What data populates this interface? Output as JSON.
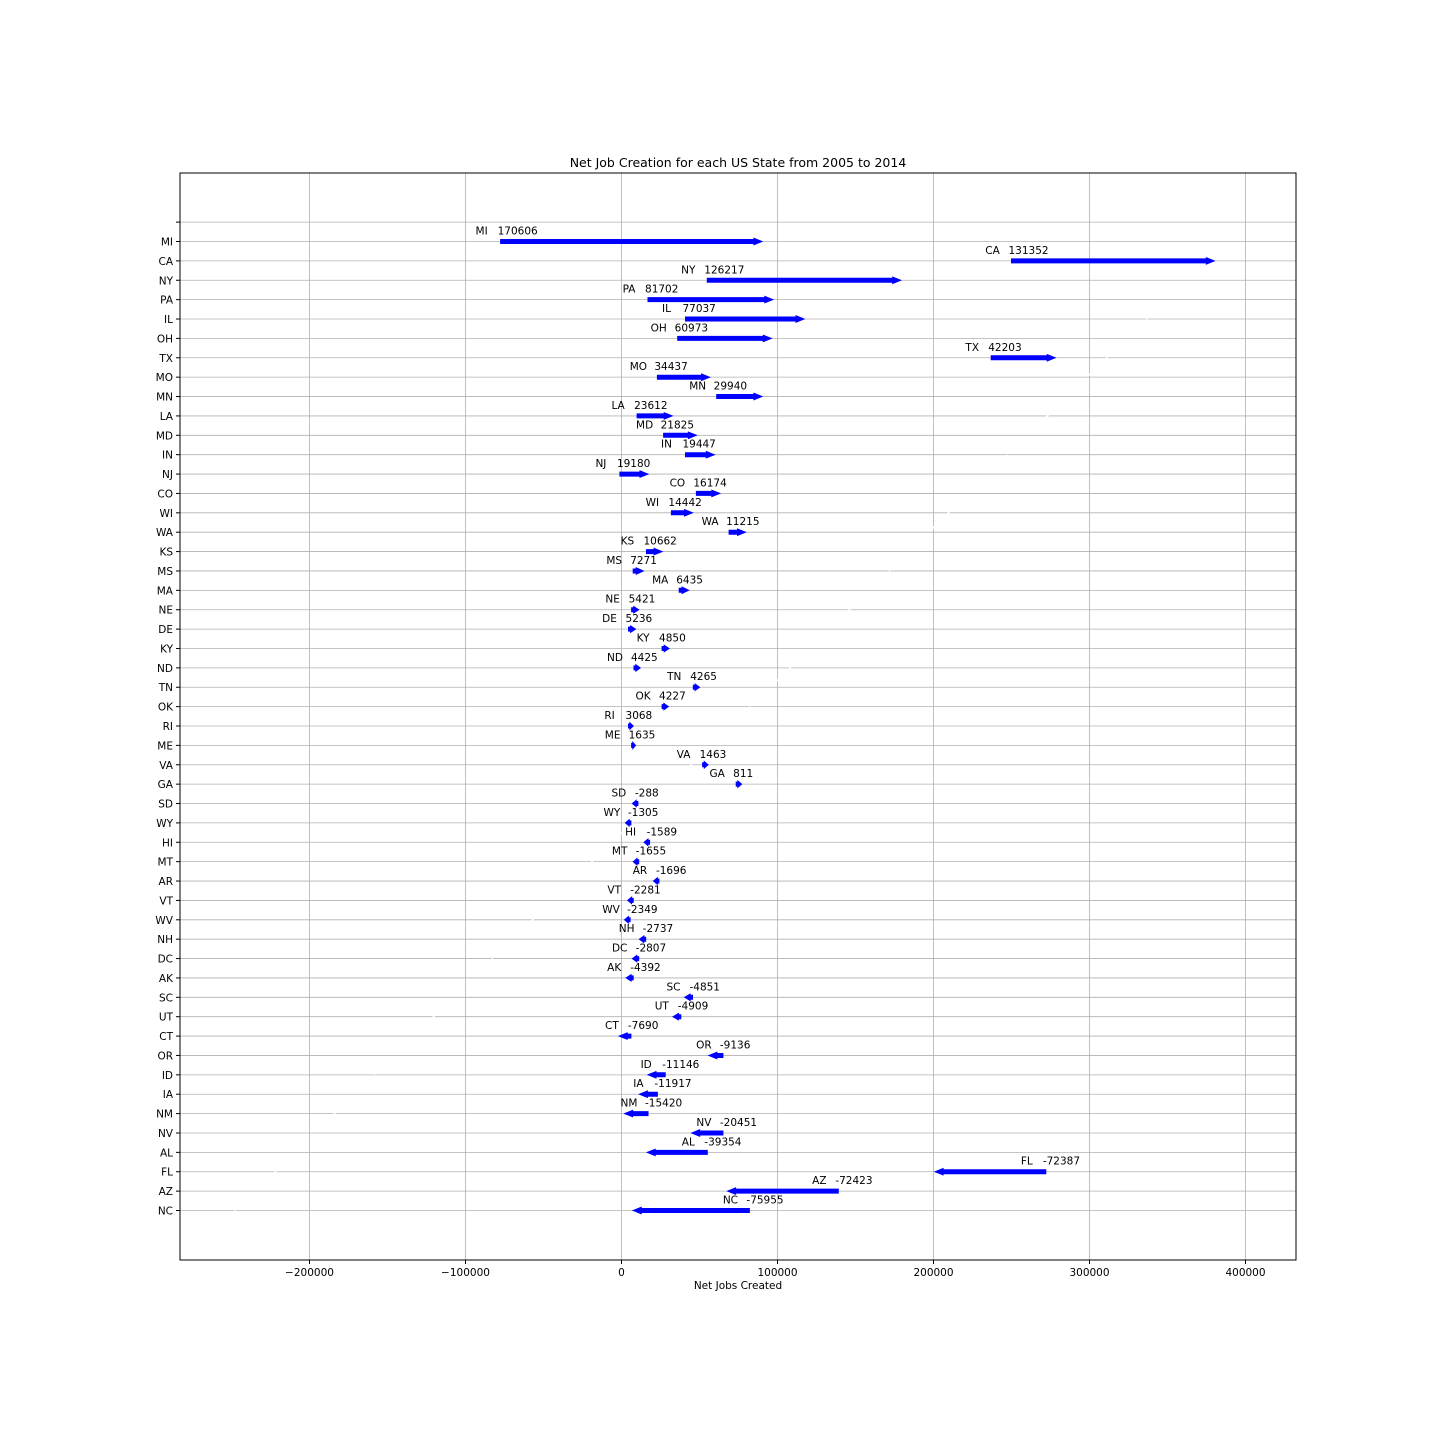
{
  "chart_data": {
    "type": "arrow",
    "title": "Net Job Creation for each US State from 2005 to 2014",
    "xlabel": "Net Jobs Created",
    "ylabel": "",
    "xlim": [
      -280000,
      435000
    ],
    "xticks": [
      -200000,
      -100000,
      0,
      100000,
      200000,
      300000,
      400000
    ],
    "xtick_labels": [
      "−200000",
      "−100000",
      "0",
      "100000",
      "200000",
      "300000",
      "400000"
    ],
    "grid": true,
    "arrow_color": "#0000ff",
    "states": [
      {
        "state": "MI",
        "value": 170606,
        "start": -77500,
        "end": 90000
      },
      {
        "state": "CA",
        "value": 131352,
        "start": 250000,
        "end": 380000
      },
      {
        "state": "NY",
        "value": 126217,
        "start": 55000,
        "end": 179000
      },
      {
        "state": "PA",
        "value": 81702,
        "start": 17000,
        "end": 97000
      },
      {
        "state": "IL",
        "value": 77037,
        "start": 41000,
        "end": 117000
      },
      {
        "state": "OH",
        "value": 60973,
        "start": 36000,
        "end": 96000
      },
      {
        "state": "TX",
        "value": 42203,
        "start": 237000,
        "end": 278000
      },
      {
        "state": "MO",
        "value": 34437,
        "start": 23000,
        "end": 56500
      },
      {
        "state": "MN",
        "value": 29940,
        "start": 61000,
        "end": 90000
      },
      {
        "state": "LA",
        "value": 23612,
        "start": 10000,
        "end": 32500
      },
      {
        "state": "MD",
        "value": 21825,
        "start": 27000,
        "end": 48000
      },
      {
        "state": "IN",
        "value": 19447,
        "start": 41000,
        "end": 59500
      },
      {
        "state": "NJ",
        "value": 19180,
        "start": -1000,
        "end": 17000
      },
      {
        "state": "CO",
        "value": 16174,
        "start": 48000,
        "end": 63000
      },
      {
        "state": "WI",
        "value": 14442,
        "start": 32000,
        "end": 45500
      },
      {
        "state": "WA",
        "value": 11215,
        "start": 69000,
        "end": 79500
      },
      {
        "state": "KS",
        "value": 10662,
        "start": 16000,
        "end": 26000
      },
      {
        "state": "MS",
        "value": 7271,
        "start": 7500,
        "end": 14000
      },
      {
        "state": "MA",
        "value": 6435,
        "start": 37000,
        "end": 43000
      },
      {
        "state": "NE",
        "value": 5421,
        "start": 6500,
        "end": 11000
      },
      {
        "state": "DE",
        "value": 5236,
        "start": 4500,
        "end": 9000
      },
      {
        "state": "KY",
        "value": 4850,
        "start": 26000,
        "end": 30500
      },
      {
        "state": "ND",
        "value": 4425,
        "start": 8000,
        "end": 12000
      },
      {
        "state": "TN",
        "value": 4265,
        "start": 46000,
        "end": 50000
      },
      {
        "state": "OK",
        "value": 4227,
        "start": 26000,
        "end": 30000
      },
      {
        "state": "RI",
        "value": 3068,
        "start": 4500,
        "end": 7500
      },
      {
        "state": "ME",
        "value": 1635,
        "start": 6500,
        "end": 9000
      },
      {
        "state": "VA",
        "value": 1463,
        "start": 52000,
        "end": 55500
      },
      {
        "state": "GA",
        "value": 811,
        "start": 73500,
        "end": 77000
      },
      {
        "state": "SD",
        "value": -288,
        "start": 10500,
        "end": 7000
      },
      {
        "state": "WY",
        "value": -1305,
        "start": 6000,
        "end": 2500
      },
      {
        "state": "HI",
        "value": -1589,
        "start": 18000,
        "end": 14500
      },
      {
        "state": "MT",
        "value": -1655,
        "start": 11000,
        "end": 7500
      },
      {
        "state": "AR",
        "value": -1696,
        "start": 24000,
        "end": 20500
      },
      {
        "state": "VT",
        "value": -2281,
        "start": 7500,
        "end": 4000
      },
      {
        "state": "WV",
        "value": -2349,
        "start": 5500,
        "end": 2000
      },
      {
        "state": "NH",
        "value": -2737,
        "start": 15500,
        "end": 11500
      },
      {
        "state": "DC",
        "value": -2807,
        "start": 11000,
        "end": 7000
      },
      {
        "state": "AK",
        "value": -4392,
        "start": 7500,
        "end": 3000
      },
      {
        "state": "SC",
        "value": -4851,
        "start": 45500,
        "end": 40500
      },
      {
        "state": "UT",
        "value": -4909,
        "start": 38000,
        "end": 33000
      },
      {
        "state": "CT",
        "value": -7690,
        "start": 6000,
        "end": -1500
      },
      {
        "state": "OR",
        "value": -9136,
        "start": 65000,
        "end": 56000
      },
      {
        "state": "ID",
        "value": -11146,
        "start": 28000,
        "end": 17000
      },
      {
        "state": "IA",
        "value": -11917,
        "start": 23000,
        "end": 11500
      },
      {
        "state": "NM",
        "value": -15420,
        "start": 17000,
        "end": 2000
      },
      {
        "state": "NV",
        "value": -20451,
        "start": 65000,
        "end": 45000
      },
      {
        "state": "AL",
        "value": -39354,
        "start": 55000,
        "end": 16500
      },
      {
        "state": "FL",
        "value": -72387,
        "start": 272000,
        "end": 201000
      },
      {
        "state": "AZ",
        "value": -72423,
        "start": 139000,
        "end": 68000
      },
      {
        "state": "NC",
        "value": -75955,
        "start": 82000,
        "end": 7500
      }
    ]
  }
}
